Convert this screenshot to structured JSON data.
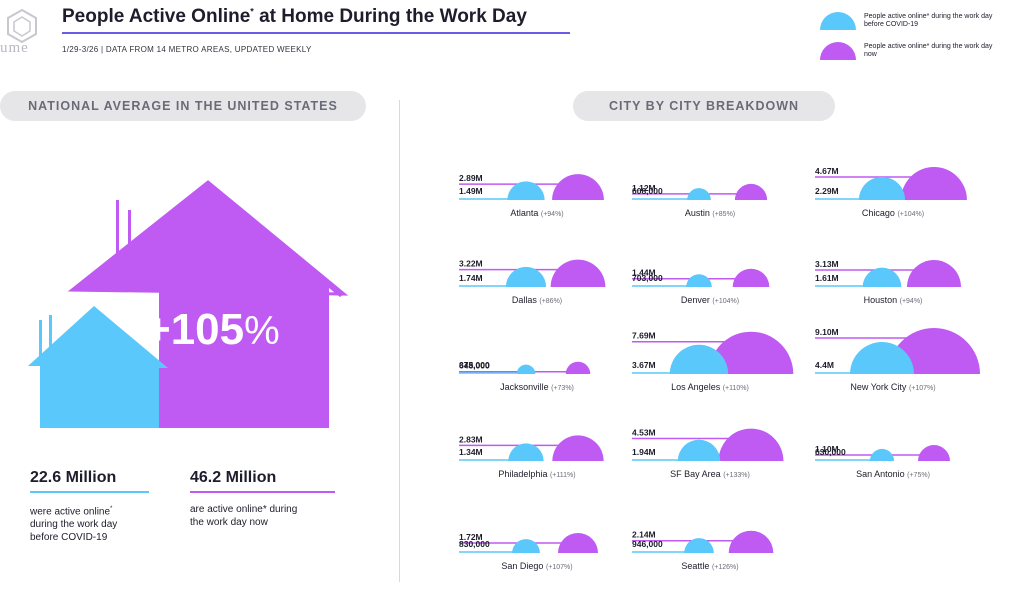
{
  "header": {
    "logo_text": "ume",
    "title": "People Active Online",
    "title_mark": "*",
    "title_rest": " at Home During the Work Day",
    "subtitle": "1/29-3/26 | DATA FROM 14 METRO AREAS, UPDATED WEEKLY"
  },
  "legend": [
    {
      "label": "People active online* during the work day before COVID-19",
      "color": "#5ac8fa"
    },
    {
      "label": "People active online* during the work day now",
      "color": "#bf5af2"
    }
  ],
  "sections": {
    "national": "NATIONAL AVERAGE IN THE UNITED STATES",
    "city": "CITY BY CITY BREAKDOWN"
  },
  "national": {
    "change": "+105%",
    "change_num": "+105",
    "change_unit": "%",
    "before_value": "22.6 Million",
    "before_desc_1": "were active online",
    "before_mark": "*",
    "before_desc_2": "during the work day",
    "before_desc_3": "before COVID-19",
    "now_value": "46.2 Million",
    "now_desc_1": "are active online* during",
    "now_desc_2": "the work day now"
  },
  "colors": {
    "before": "#5ac8fa",
    "now": "#bf5af2",
    "accent": "#6b5ce7"
  },
  "chart_data": {
    "type": "bar",
    "title": "People Active Online* at Home During the Work Day",
    "series": [
      {
        "name": "People active online* during the work day before COVID-19"
      },
      {
        "name": "People active online* during the work day now"
      }
    ],
    "cities": [
      {
        "name": "Atlanta",
        "pct": "(+94%)",
        "before_label": "1.49M",
        "now_label": "2.89M",
        "before": 1490000,
        "now": 2890000
      },
      {
        "name": "Austin",
        "pct": "(+85%)",
        "before_label": "608,000",
        "now_label": "1.12M",
        "before": 608000,
        "now": 1120000
      },
      {
        "name": "Chicago",
        "pct": "(+104%)",
        "before_label": "2.29M",
        "now_label": "4.67M",
        "before": 2290000,
        "now": 4670000
      },
      {
        "name": "Dallas",
        "pct": "(+86%)",
        "before_label": "1.74M",
        "now_label": "3.22M",
        "before": 1740000,
        "now": 3220000
      },
      {
        "name": "Denver",
        "pct": "(+104%)",
        "before_label": "703,000",
        "now_label": "1.44M",
        "before": 703000,
        "now": 1440000
      },
      {
        "name": "Houston",
        "pct": "(+94%)",
        "before_label": "1.61M",
        "now_label": "3.13M",
        "before": 1610000,
        "now": 3130000
      },
      {
        "name": "Jacksonville",
        "pct": "(+73%)",
        "before_label": "375,000",
        "now_label": "648,000",
        "before": 375000,
        "now": 648000
      },
      {
        "name": "Los Angeles",
        "pct": "(+110%)",
        "before_label": "3.67M",
        "now_label": "7.69M",
        "before": 3670000,
        "now": 7690000
      },
      {
        "name": "New York City",
        "pct": "(+107%)",
        "before_label": "4.4M",
        "now_label": "9.10M",
        "before": 4400000,
        "now": 9100000
      },
      {
        "name": "Philadelphia",
        "pct": "(+111%)",
        "before_label": "1.34M",
        "now_label": "2.83M",
        "before": 1340000,
        "now": 2830000
      },
      {
        "name": "SF Bay Area",
        "pct": "(+133%)",
        "before_label": "1.94M",
        "now_label": "4.53M",
        "before": 1940000,
        "now": 4530000
      },
      {
        "name": "San Antonio",
        "pct": "(+75%)",
        "before_label": "630,000",
        "now_label": "1.10M",
        "before": 630000,
        "now": 1100000
      },
      {
        "name": "San Diego",
        "pct": "(+107%)",
        "before_label": "830,000",
        "now_label": "1.72M",
        "before": 830000,
        "now": 1720000
      },
      {
        "name": "Seattle",
        "pct": "(+126%)",
        "before_label": "946,000",
        "now_label": "2.14M",
        "before": 946000,
        "now": 2140000
      }
    ]
  }
}
